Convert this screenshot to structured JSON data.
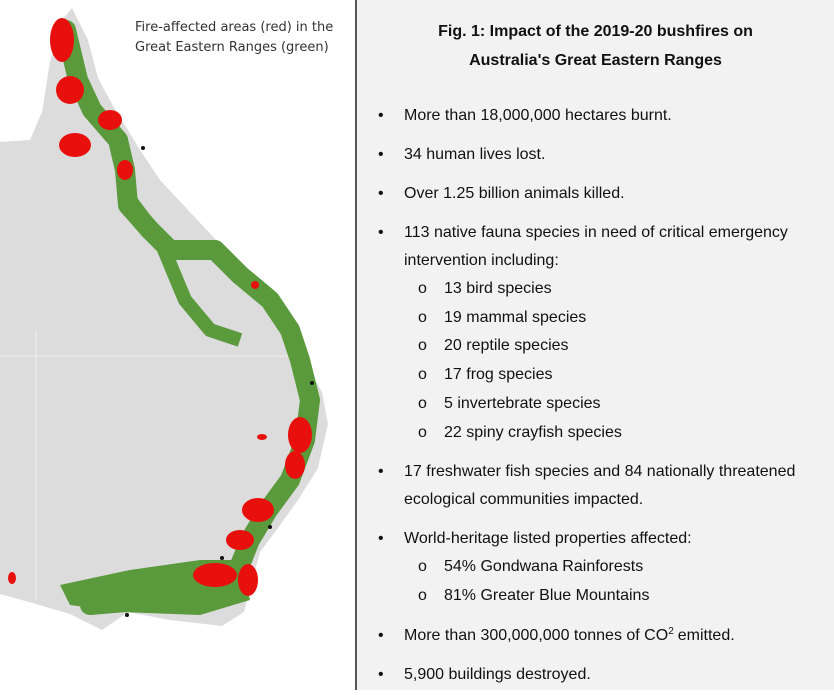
{
  "map": {
    "caption": [
      "Fire-affected areas (red) in the",
      "Great Eastern Ranges (green)"
    ]
  },
  "panel": {
    "title": [
      "Fig. 1: Impact of the 2019-20 bushfires on",
      "Australia's Great Eastern Ranges"
    ],
    "items": [
      {
        "lines": [
          "More than 18,000,000 hectares burnt."
        ]
      },
      {
        "lines": [
          "34 human lives lost."
        ]
      },
      {
        "lines": [
          "Over 1.25 billion animals killed."
        ]
      },
      {
        "lines": [
          "113 native fauna species in need of critical emergency",
          "intervention including:"
        ],
        "subitems": [
          "13 bird species",
          "19 mammal species",
          "20 reptile species",
          "17 frog species",
          "5 invertebrate species",
          "22 spiny crayfish species"
        ]
      },
      {
        "lines": [
          "17 freshwater fish species and 84 nationally threatened",
          "ecological communities impacted."
        ]
      },
      {
        "lines": [
          "World-heritage listed properties affected:"
        ],
        "subitems": [
          "54% Gondwana Rainforests",
          "81% Greater Blue Mountains"
        ]
      },
      {
        "lines": [
          "More than 300,000,000 tonnes of CO"
        ],
        "superscript": "2",
        "text_after": "emitted."
      },
      {
        "lines": [
          "5,900 buildings destroyed."
        ]
      }
    ]
  }
}
